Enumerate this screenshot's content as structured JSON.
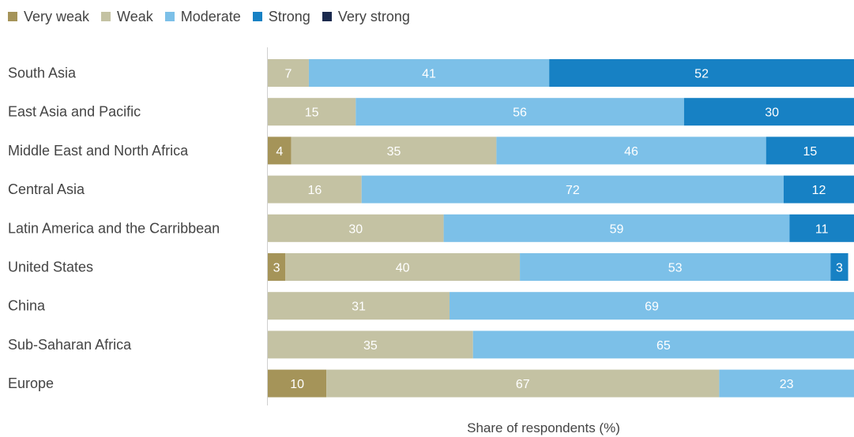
{
  "chart_data": {
    "type": "bar",
    "orientation": "horizontal",
    "stacked": true,
    "xlabel": "Share of respondents (%)",
    "xlim": [
      0,
      100
    ],
    "legend_position": "top-left",
    "categories": [
      "South Asia",
      "East Asia and Pacific",
      "Middle East and North Africa",
      "Central Asia",
      "Latin America and the Carribbean",
      "United States",
      "China",
      "Sub-Saharan Africa",
      "Europe"
    ],
    "series": [
      {
        "name": "Very weak",
        "color": "#a59459",
        "values": [
          0,
          0,
          4,
          0,
          0,
          3,
          0,
          0,
          10
        ]
      },
      {
        "name": "Weak",
        "color": "#c4c2a3",
        "values": [
          7,
          15,
          35,
          16,
          30,
          40,
          31,
          35,
          67
        ]
      },
      {
        "name": "Moderate",
        "color": "#7cc0e8",
        "values": [
          41,
          56,
          46,
          72,
          59,
          53,
          69,
          65,
          23
        ]
      },
      {
        "name": "Strong",
        "color": "#1781c4",
        "values": [
          52,
          30,
          15,
          12,
          11,
          3,
          0,
          0,
          0
        ]
      },
      {
        "name": "Very strong",
        "color": "#1b2a4e",
        "values": [
          0,
          0,
          0,
          0,
          0,
          0,
          0,
          0,
          0
        ]
      }
    ]
  }
}
